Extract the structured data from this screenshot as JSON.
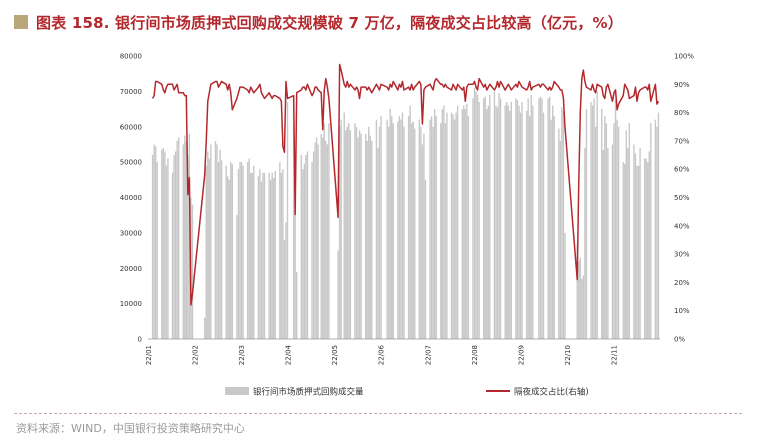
{
  "title": "图表 158. 银行间市场质押式回购成交规模破 7 万亿，隔夜成交占比较高（亿元，%）",
  "source": "资料来源：WIND，中国银行投资策略研究中心",
  "colors": {
    "bar": "#c8c8c8",
    "line": "#b3282d",
    "title": "#b3282d",
    "mark": "#b9a67a"
  },
  "chart_data": {
    "type": "bar+line",
    "y_left": {
      "min": 0,
      "max": 80000,
      "ticks": [
        "0",
        "10000",
        "20000",
        "30000",
        "40000",
        "50000",
        "60000",
        "70000",
        "80000"
      ]
    },
    "y_right": {
      "min": 0,
      "max": 100,
      "ticks": [
        "0%",
        "10%",
        "20%",
        "30%",
        "40%",
        "50%",
        "60%",
        "70%",
        "80%",
        "90%",
        "100%"
      ]
    },
    "x_ticks": [
      "22/01",
      "22/02",
      "22/03",
      "22/04",
      "22/05",
      "22/06",
      "22/07",
      "22/08",
      "22/09",
      "22/10",
      "22/11"
    ],
    "legend": [
      "银行间市场质押式回购成交量",
      "隔夜成交占比(右轴)"
    ],
    "series": [
      {
        "name": "银行间市场质押式回购成交量",
        "axis": "left",
        "x": [
          "2022-01-04",
          "2022-01-05",
          "2022-01-06",
          "2022-01-07",
          "2022-01-10",
          "2022-01-11",
          "2022-01-12",
          "2022-01-13",
          "2022-01-14",
          "2022-01-17",
          "2022-01-18",
          "2022-01-19",
          "2022-01-20",
          "2022-01-21",
          "2022-01-24",
          "2022-01-25",
          "2022-01-26",
          "2022-01-27",
          "2022-01-28",
          "2022-01-29",
          "2022-01-30",
          "2022-02-07",
          "2022-02-08",
          "2022-02-09",
          "2022-02-10",
          "2022-02-11",
          "2022-02-14",
          "2022-02-15",
          "2022-02-16",
          "2022-02-17",
          "2022-02-18",
          "2022-02-21",
          "2022-02-22",
          "2022-02-23",
          "2022-02-24",
          "2022-02-25",
          "2022-02-28",
          "2022-03-01",
          "2022-03-02",
          "2022-03-03",
          "2022-03-04",
          "2022-03-07",
          "2022-03-08",
          "2022-03-09",
          "2022-03-10",
          "2022-03-11",
          "2022-03-14",
          "2022-03-15",
          "2022-03-16",
          "2022-03-17",
          "2022-03-18",
          "2022-03-21",
          "2022-03-22",
          "2022-03-23",
          "2022-03-24",
          "2022-03-25",
          "2022-03-28",
          "2022-03-29",
          "2022-03-30",
          "2022-03-31",
          "2022-04-01",
          "2022-04-02",
          "2022-04-06",
          "2022-04-07",
          "2022-04-08",
          "2022-04-11",
          "2022-04-12",
          "2022-04-13",
          "2022-04-14",
          "2022-04-15",
          "2022-04-18",
          "2022-04-19",
          "2022-04-20",
          "2022-04-21",
          "2022-04-22",
          "2022-04-24",
          "2022-04-25",
          "2022-04-26",
          "2022-04-27",
          "2022-04-28",
          "2022-04-29",
          "2022-05-05",
          "2022-05-06",
          "2022-05-07",
          "2022-05-09",
          "2022-05-10",
          "2022-05-11",
          "2022-05-12",
          "2022-05-13",
          "2022-05-16",
          "2022-05-17",
          "2022-05-18",
          "2022-05-19",
          "2022-05-20",
          "2022-05-23",
          "2022-05-24",
          "2022-05-25",
          "2022-05-26",
          "2022-05-27",
          "2022-05-30",
          "2022-05-31",
          "2022-06-01",
          "2022-06-02",
          "2022-06-06",
          "2022-06-07",
          "2022-06-08",
          "2022-06-09",
          "2022-06-10",
          "2022-06-13",
          "2022-06-14",
          "2022-06-15",
          "2022-06-16",
          "2022-06-17",
          "2022-06-20",
          "2022-06-21",
          "2022-06-22",
          "2022-06-23",
          "2022-06-24",
          "2022-06-27",
          "2022-06-28",
          "2022-06-29",
          "2022-06-30",
          "2022-07-01",
          "2022-07-04",
          "2022-07-05",
          "2022-07-06",
          "2022-07-07",
          "2022-07-08",
          "2022-07-11",
          "2022-07-12",
          "2022-07-13",
          "2022-07-14",
          "2022-07-15",
          "2022-07-18",
          "2022-07-19",
          "2022-07-20",
          "2022-07-21",
          "2022-07-22",
          "2022-07-25",
          "2022-07-26",
          "2022-07-27",
          "2022-07-28",
          "2022-07-29",
          "2022-08-01",
          "2022-08-02",
          "2022-08-03",
          "2022-08-04",
          "2022-08-05",
          "2022-08-08",
          "2022-08-09",
          "2022-08-10",
          "2022-08-11",
          "2022-08-12",
          "2022-08-15",
          "2022-08-16",
          "2022-08-17",
          "2022-08-18",
          "2022-08-19",
          "2022-08-22",
          "2022-08-23",
          "2022-08-24",
          "2022-08-25",
          "2022-08-26",
          "2022-08-29",
          "2022-08-30",
          "2022-08-31",
          "2022-09-01",
          "2022-09-02",
          "2022-09-05",
          "2022-09-06",
          "2022-09-07",
          "2022-09-08",
          "2022-09-09",
          "2022-09-13",
          "2022-09-14",
          "2022-09-15",
          "2022-09-16",
          "2022-09-19",
          "2022-09-20",
          "2022-09-21",
          "2022-09-22",
          "2022-09-23",
          "2022-09-26",
          "2022-09-27",
          "2022-09-28",
          "2022-09-29",
          "2022-09-30",
          "2022-10-08",
          "2022-10-09",
          "2022-10-10",
          "2022-10-11",
          "2022-10-12",
          "2022-10-13",
          "2022-10-14",
          "2022-10-17",
          "2022-10-18",
          "2022-10-19",
          "2022-10-20",
          "2022-10-21",
          "2022-10-24",
          "2022-10-25",
          "2022-10-26",
          "2022-10-27",
          "2022-10-28",
          "2022-10-31",
          "2022-11-01",
          "2022-11-02",
          "2022-11-03",
          "2022-11-04",
          "2022-11-07",
          "2022-11-08",
          "2022-11-09",
          "2022-11-10",
          "2022-11-11",
          "2022-11-14",
          "2022-11-15",
          "2022-11-16",
          "2022-11-17",
          "2022-11-18",
          "2022-11-21",
          "2022-11-22",
          "2022-11-23",
          "2022-11-24",
          "2022-11-25",
          "2022-11-28",
          "2022-11-29",
          "2022-11-30"
        ],
        "values": [
          52000,
          55000,
          54500,
          50000,
          53500,
          54000,
          53000,
          49000,
          51000,
          47000,
          52000,
          53000,
          56000,
          57000,
          55000,
          57500,
          56000,
          52000,
          58000,
          40000,
          38000,
          6000,
          49000,
          53000,
          51000,
          55000,
          56000,
          55000,
          50000,
          53500,
          50500,
          49000,
          46000,
          45000,
          50000,
          49500,
          35000,
          48000,
          50000,
          50000,
          49000,
          50000,
          51000,
          47000,
          47000,
          49000,
          46000,
          48000,
          44500,
          47000,
          47000,
          47000,
          45000,
          47000,
          45500,
          47500,
          50000,
          47000,
          48000,
          28000,
          33000,
          67000,
          60000,
          51000,
          19000,
          52000,
          48000,
          49500,
          52000,
          53000,
          50000,
          53000,
          55500,
          57000,
          55000,
          58000,
          57000,
          61000,
          56000,
          55000,
          61000,
          25000,
          60000,
          62000,
          64000,
          59000,
          60000,
          61000,
          59000,
          61000,
          60000,
          57000,
          59000,
          58000,
          58000,
          56000,
          60000,
          57500,
          56000,
          62000,
          54000,
          60000,
          63000,
          62000,
          60000,
          65000,
          63000,
          61000,
          61500,
          63000,
          62000,
          64000,
          60000,
          63000,
          66000,
          61000,
          61500,
          59500,
          62000,
          60000,
          55000,
          58000,
          45000,
          62000,
          63000,
          60000,
          65000,
          63000,
          61000,
          65000,
          66000,
          61000,
          64000,
          64000,
          63500,
          62000,
          64000,
          66000,
          65000,
          66000,
          65000,
          66500,
          63000,
          68000,
          71000,
          70000,
          69000,
          67000,
          68000,
          68500,
          65000,
          66000,
          69000,
          70000,
          66000,
          65500,
          69500,
          68000,
          66000,
          67000,
          66000,
          64500,
          67000,
          68000,
          67500,
          66000,
          64000,
          67000,
          64500,
          68000,
          63000,
          69000,
          66000,
          68000,
          68500,
          68000,
          64000,
          68000,
          68500,
          62000,
          66000,
          63000,
          59500,
          56000,
          65500,
          64500,
          30000,
          27000,
          22000,
          23000,
          17000,
          18000,
          54000,
          65000,
          67000,
          66000,
          68000,
          60000,
          70000,
          65000,
          53500,
          63000,
          61000,
          54000,
          55000,
          61000,
          67500,
          62000,
          60000,
          50000,
          49500,
          59000,
          54000,
          61000,
          55000,
          52500,
          49000,
          49000,
          54000,
          51000,
          51000,
          50000,
          53000,
          61000,
          62000,
          60000,
          64000
        ]
      },
      {
        "name": "隔夜成交占比(右轴)",
        "axis": "right",
        "x": [
          "2022-01-04",
          "2022-01-05",
          "2022-01-06",
          "2022-01-07",
          "2022-01-10",
          "2022-01-11",
          "2022-01-12",
          "2022-01-13",
          "2022-01-14",
          "2022-01-17",
          "2022-01-18",
          "2022-01-19",
          "2022-01-20",
          "2022-01-21",
          "2022-01-24",
          "2022-01-25",
          "2022-01-26",
          "2022-01-27",
          "2022-01-28",
          "2022-01-29",
          "2022-01-30",
          "2022-02-07",
          "2022-02-08",
          "2022-02-09",
          "2022-02-10",
          "2022-02-11",
          "2022-02-14",
          "2022-02-15",
          "2022-02-16",
          "2022-02-17",
          "2022-02-18",
          "2022-02-21",
          "2022-02-22",
          "2022-02-23",
          "2022-02-24",
          "2022-02-25",
          "2022-02-28",
          "2022-03-01",
          "2022-03-02",
          "2022-03-03",
          "2022-03-04",
          "2022-03-07",
          "2022-03-08",
          "2022-03-09",
          "2022-03-10",
          "2022-03-11",
          "2022-03-14",
          "2022-03-15",
          "2022-03-16",
          "2022-03-17",
          "2022-03-18",
          "2022-03-21",
          "2022-03-22",
          "2022-03-23",
          "2022-03-24",
          "2022-03-25",
          "2022-03-28",
          "2022-03-29",
          "2022-03-30",
          "2022-03-31",
          "2022-04-01",
          "2022-04-02",
          "2022-04-06",
          "2022-04-07",
          "2022-04-08",
          "2022-04-11",
          "2022-04-12",
          "2022-04-13",
          "2022-04-14",
          "2022-04-15",
          "2022-04-18",
          "2022-04-19",
          "2022-04-20",
          "2022-04-21",
          "2022-04-22",
          "2022-04-24",
          "2022-04-25",
          "2022-04-26",
          "2022-04-27",
          "2022-04-28",
          "2022-04-29",
          "2022-05-05",
          "2022-05-06",
          "2022-05-07",
          "2022-05-09",
          "2022-05-10",
          "2022-05-11",
          "2022-05-12",
          "2022-05-13",
          "2022-05-16",
          "2022-05-17",
          "2022-05-18",
          "2022-05-19",
          "2022-05-20",
          "2022-05-23",
          "2022-05-24",
          "2022-05-25",
          "2022-05-26",
          "2022-05-27",
          "2022-05-30",
          "2022-05-31",
          "2022-06-01",
          "2022-06-02",
          "2022-06-06",
          "2022-06-07",
          "2022-06-08",
          "2022-06-09",
          "2022-06-10",
          "2022-06-13",
          "2022-06-14",
          "2022-06-15",
          "2022-06-16",
          "2022-06-17",
          "2022-06-20",
          "2022-06-21",
          "2022-06-22",
          "2022-06-23",
          "2022-06-24",
          "2022-06-27",
          "2022-06-28",
          "2022-06-29",
          "2022-06-30",
          "2022-07-01",
          "2022-07-04",
          "2022-07-05",
          "2022-07-06",
          "2022-07-07",
          "2022-07-08",
          "2022-07-11",
          "2022-07-12",
          "2022-07-13",
          "2022-07-14",
          "2022-07-15",
          "2022-07-18",
          "2022-07-19",
          "2022-07-20",
          "2022-07-21",
          "2022-07-22",
          "2022-07-25",
          "2022-07-26",
          "2022-07-27",
          "2022-07-28",
          "2022-07-29",
          "2022-08-01",
          "2022-08-02",
          "2022-08-03",
          "2022-08-04",
          "2022-08-05",
          "2022-08-08",
          "2022-08-09",
          "2022-08-10",
          "2022-08-11",
          "2022-08-12",
          "2022-08-15",
          "2022-08-16",
          "2022-08-17",
          "2022-08-18",
          "2022-08-19",
          "2022-08-22",
          "2022-08-23",
          "2022-08-24",
          "2022-08-25",
          "2022-08-26",
          "2022-08-29",
          "2022-08-30",
          "2022-08-31",
          "2022-09-01",
          "2022-09-02",
          "2022-09-05",
          "2022-09-06",
          "2022-09-07",
          "2022-09-08",
          "2022-09-09",
          "2022-09-13",
          "2022-09-14",
          "2022-09-15",
          "2022-09-16",
          "2022-09-19",
          "2022-09-20",
          "2022-09-21",
          "2022-09-22",
          "2022-09-23",
          "2022-09-26",
          "2022-09-27",
          "2022-09-28",
          "2022-09-29",
          "2022-09-30",
          "2022-10-08",
          "2022-10-09",
          "2022-10-10",
          "2022-10-11",
          "2022-10-12",
          "2022-10-13",
          "2022-10-14",
          "2022-10-17",
          "2022-10-18",
          "2022-10-19",
          "2022-10-20",
          "2022-10-21",
          "2022-10-24",
          "2022-10-25",
          "2022-10-26",
          "2022-10-27",
          "2022-10-28",
          "2022-10-31",
          "2022-11-01",
          "2022-11-02",
          "2022-11-03",
          "2022-11-04",
          "2022-11-07",
          "2022-11-08",
          "2022-11-09",
          "2022-11-10",
          "2022-11-11",
          "2022-11-14",
          "2022-11-15",
          "2022-11-16",
          "2022-11-17",
          "2022-11-18",
          "2022-11-21",
          "2022-11-22",
          "2022-11-23",
          "2022-11-24",
          "2022-11-25",
          "2022-11-28",
          "2022-11-29",
          "2022-11-30"
        ],
        "values": [
          85,
          86,
          91,
          91,
          90,
          88,
          87,
          89,
          90,
          90,
          88,
          89,
          90,
          87,
          87,
          86,
          86,
          51,
          57,
          12,
          16,
          58,
          70,
          84,
          87,
          90,
          91,
          91,
          89,
          90,
          91,
          90,
          88,
          90,
          87,
          81,
          85,
          87,
          89,
          89,
          89,
          88,
          87,
          89,
          88,
          87,
          89,
          90,
          87,
          86,
          85,
          87,
          86,
          85,
          86,
          86,
          85,
          84,
          68,
          66,
          91,
          85,
          86,
          44,
          87,
          88,
          89,
          89,
          88,
          90,
          86,
          87,
          89,
          89,
          88,
          87,
          74,
          88,
          92,
          89,
          85,
          43,
          97,
          95,
          90,
          89,
          91,
          89,
          90,
          88,
          89,
          88,
          85,
          89,
          89,
          88,
          89,
          88,
          87,
          90,
          89,
          88,
          90,
          89,
          88,
          90,
          89,
          91,
          88,
          90,
          89,
          91,
          88,
          89,
          88,
          90,
          88,
          89,
          91,
          90,
          76,
          88,
          89,
          90,
          89,
          88,
          91,
          92,
          90,
          90,
          89,
          90,
          89,
          88,
          90,
          89,
          88,
          90,
          88,
          89,
          84,
          89,
          90,
          90,
          91,
          89,
          88,
          92,
          89,
          90,
          88,
          89,
          90,
          88,
          89,
          91,
          89,
          91,
          88,
          89,
          90,
          89,
          88,
          90,
          89,
          91,
          90,
          89,
          88,
          89,
          91,
          88,
          89,
          90,
          89,
          90,
          90,
          88,
          89,
          88,
          89,
          91,
          89,
          88,
          88,
          85,
          75,
          21,
          55,
          80,
          92,
          95,
          91,
          89,
          88,
          90,
          88,
          87,
          90,
          89,
          86,
          85,
          89,
          90,
          84,
          87,
          88,
          81,
          83,
          86,
          90,
          89,
          88,
          85,
          86,
          89,
          84,
          87,
          88,
          89,
          89,
          88,
          90,
          84,
          90,
          83,
          84
        ]
      }
    ]
  }
}
